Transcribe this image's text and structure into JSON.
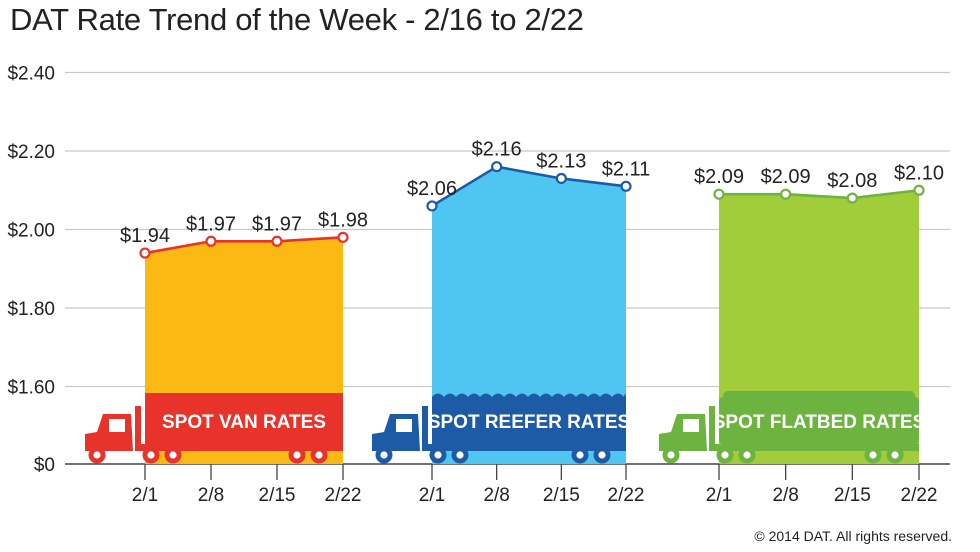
{
  "title": "DAT Rate Trend of the Week - 2/16 to 2/22",
  "copyright": "© 2014 DAT. All rights reserved.",
  "chart_data": {
    "type": "area",
    "title": "DAT Rate Trend of the Week - 2/16 to 2/22",
    "xlabel": "",
    "ylabel": "",
    "ylim": [
      0,
      2.4
    ],
    "y_ticks": [
      0,
      1.6,
      1.8,
      2.0,
      2.2,
      2.4
    ],
    "y_tick_labels": [
      "$0",
      "$1.60",
      "$1.80",
      "$2.00",
      "$2.20",
      "$2.40"
    ],
    "y_axis_break": true,
    "grid": "horizontal",
    "legend": "none",
    "categories": [
      "2/1",
      "2/8",
      "2/15",
      "2/22"
    ],
    "series": [
      {
        "name": "SPOT VAN RATES",
        "color": "#FDB913",
        "line_color": "#E8332A",
        "banner_color": "#E8332A",
        "values": [
          1.94,
          1.97,
          1.97,
          1.98
        ],
        "labels": [
          "$1.94",
          "$1.97",
          "$1.97",
          "$1.98"
        ]
      },
      {
        "name": "SPOT REEFER RATES",
        "color": "#4FC6F2",
        "line_color": "#1D5BA6",
        "banner_color": "#1D5BA6",
        "values": [
          2.06,
          2.16,
          2.13,
          2.11
        ],
        "labels": [
          "$2.06",
          "$2.16",
          "$2.13",
          "$2.11"
        ]
      },
      {
        "name": "SPOT FLATBED RATES",
        "color": "#A2CD3A",
        "line_color": "#6DB33F",
        "banner_color": "#6DB33F",
        "values": [
          2.09,
          2.09,
          2.08,
          2.1
        ],
        "labels": [
          "$2.09",
          "$2.09",
          "$2.08",
          "$2.10"
        ]
      }
    ]
  }
}
